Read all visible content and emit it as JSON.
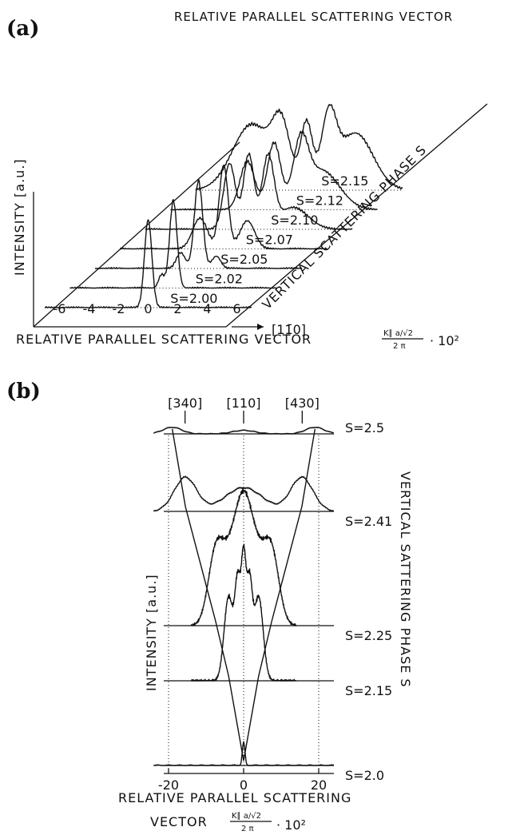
{
  "chart_data": [
    {
      "panel_label": "(a)",
      "type": "line",
      "top_label": "RELATIVE PARALLEL SCATTERING VECTOR",
      "ylabel": "INTENSITY [a.u.]",
      "xlabel": "RELATIVE PARALLEL SCATTERING VECTOR",
      "xlabel_formula": {
        "numerator": "K∥ a/√2",
        "denominator": "2 π",
        "factor": "· 10²"
      },
      "depth_label": "VERTICAL SCATTERING PHASE S",
      "direction_label": "[11̄0]",
      "x_ticks": [
        "-6",
        "-4",
        "-2",
        "0",
        "2",
        "4",
        "6"
      ],
      "xlim": [
        -7,
        7
      ],
      "series": [
        {
          "name": "S=2.00",
          "peaks": [
            {
              "x": 0,
              "h": 1.0,
              "w": 0.25
            }
          ]
        },
        {
          "name": "S=2.02",
          "peaks": [
            {
              "x": 0,
              "h": 1.0,
              "w": 0.25
            },
            {
              "x": -0.8,
              "h": 0.15,
              "w": 0.2
            }
          ]
        },
        {
          "name": "S=2.05",
          "peaks": [
            {
              "x": 0,
              "h": 1.0,
              "w": 0.28
            },
            {
              "x": -1.2,
              "h": 0.18,
              "w": 0.3
            },
            {
              "x": 1.2,
              "h": 0.14,
              "w": 0.3
            }
          ]
        },
        {
          "name": "S=2.07",
          "peaks": [
            {
              "x": 0,
              "h": 0.95,
              "w": 0.3
            },
            {
              "x": -1.6,
              "h": 0.35,
              "w": 0.5
            },
            {
              "x": 1.6,
              "h": 0.32,
              "w": 0.5
            }
          ]
        },
        {
          "name": "S=2.10",
          "peaks": [
            {
              "x": -1.3,
              "h": 0.75,
              "w": 0.4
            },
            {
              "x": 0,
              "h": 0.85,
              "w": 0.35
            },
            {
              "x": 1.3,
              "h": 0.8,
              "w": 0.4
            },
            {
              "x": 3.0,
              "h": 0.25,
              "w": 1.0
            }
          ]
        },
        {
          "name": "S=2.12",
          "peaks": [
            {
              "x": -1.8,
              "h": 0.55,
              "w": 0.5
            },
            {
              "x": 0,
              "h": 0.75,
              "w": 0.45
            },
            {
              "x": 1.8,
              "h": 0.65,
              "w": 0.5
            },
            {
              "x": 3.2,
              "h": 0.45,
              "w": 1.2
            }
          ]
        },
        {
          "name": "S=2.15",
          "peaks": [
            {
              "x": -3.2,
              "h": 0.75,
              "w": 1.3
            },
            {
              "x": -1.2,
              "h": 0.65,
              "w": 0.6
            },
            {
              "x": 0.5,
              "h": 0.75,
              "w": 0.4
            },
            {
              "x": 2.0,
              "h": 0.75,
              "w": 0.5
            },
            {
              "x": 3.8,
              "h": 0.65,
              "w": 1.2
            }
          ]
        }
      ]
    },
    {
      "panel_label": "(b)",
      "type": "line",
      "ylabel": "INTENSITY [a.u.]",
      "xlabel_line1": "RELATIVE PARALLEL SCATTERING",
      "xlabel_line2": "VECTOR",
      "xlabel_formula": {
        "numerator": "K∥ a/√2",
        "denominator": "2 π",
        "factor": "· 10²"
      },
      "depth_label": "VERTICAL SATTERING PHASE S",
      "direction_labels": [
        "[340]",
        "[110]",
        "[430]"
      ],
      "x_ticks": [
        "-20",
        "0",
        "20"
      ],
      "xlim": [
        -24,
        24
      ],
      "series": [
        {
          "name": "S=2.5",
          "peaks": [
            {
              "x": -19,
              "h": 0.15,
              "w": 2.5
            },
            {
              "x": 0,
              "h": 0.08,
              "w": 3
            },
            {
              "x": 19,
              "h": 0.15,
              "w": 2.5
            }
          ]
        },
        {
          "name": "S=2.41",
          "peaks": [
            {
              "x": -15.5,
              "h": 0.5,
              "w": 3
            },
            {
              "x": 0,
              "h": 0.35,
              "w": 5
            },
            {
              "x": 15.5,
              "h": 0.5,
              "w": 3
            }
          ]
        },
        {
          "name": "S=2.25",
          "peaks": [
            {
              "x": -7.5,
              "h": 0.55,
              "w": 2.0
            },
            {
              "x": -3.5,
              "h": 0.5,
              "w": 2.5
            },
            {
              "x": 0,
              "h": 0.75,
              "w": 2.2
            },
            {
              "x": 3.5,
              "h": 0.5,
              "w": 2.5
            },
            {
              "x": 7.5,
              "h": 0.55,
              "w": 2.0
            }
          ]
        },
        {
          "name": "S=2.15",
          "peaks": [
            {
              "x": -4,
              "h": 0.7,
              "w": 1.2
            },
            {
              "x": -1.5,
              "h": 0.8,
              "w": 0.8
            },
            {
              "x": 0,
              "h": 0.85,
              "w": 0.6
            },
            {
              "x": 1.5,
              "h": 0.8,
              "w": 0.8
            },
            {
              "x": 4,
              "h": 0.7,
              "w": 1.2
            }
          ]
        },
        {
          "name": "S=2.0",
          "peaks": [
            {
              "x": 0,
              "h": 0.3,
              "w": 0.35
            }
          ]
        }
      ]
    }
  ]
}
